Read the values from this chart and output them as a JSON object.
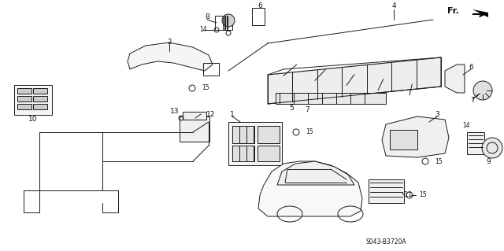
{
  "bg_color": "#ffffff",
  "fig_width": 6.4,
  "fig_height": 3.19,
  "dpi": 100,
  "diagram_code": "S043-B3720A",
  "line_color": "#1a1a1a",
  "text_color": "#111111",
  "label_fontsize": 6.5,
  "code_fontsize": 5.5
}
